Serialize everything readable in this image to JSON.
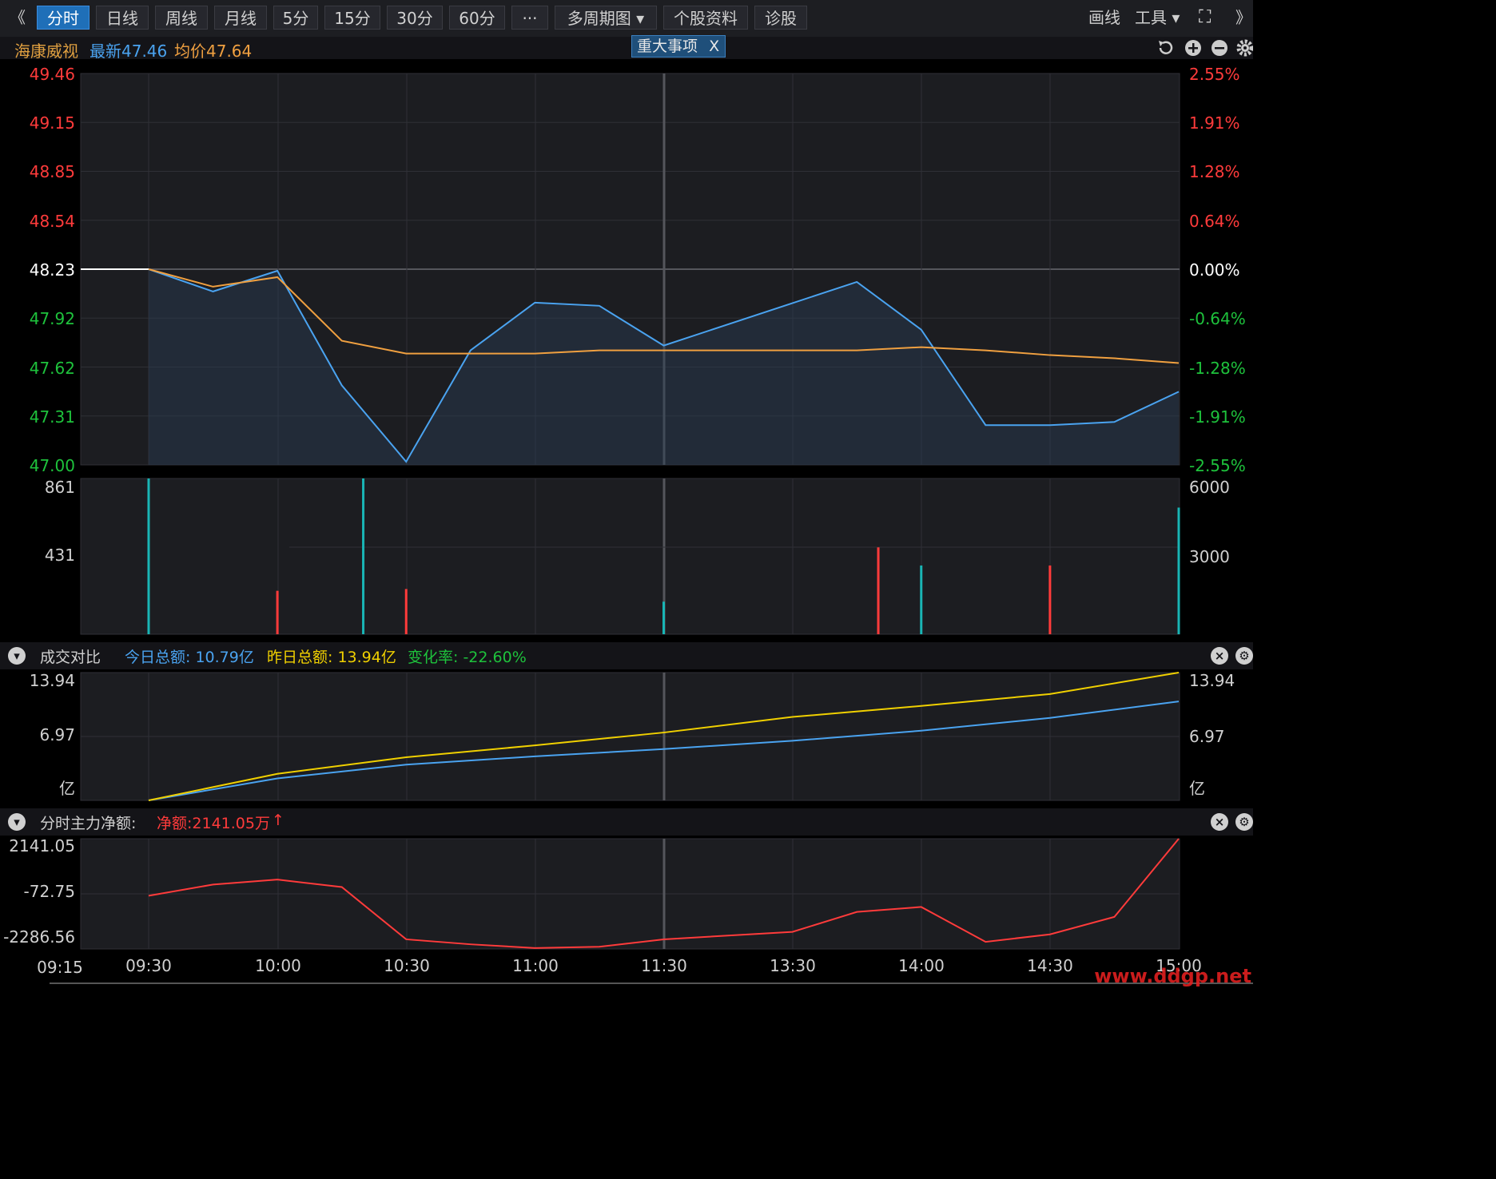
{
  "toolbar": {
    "back_glyph": "《",
    "tabs": [
      {
        "label": "分时",
        "active": true
      },
      {
        "label": "日线"
      },
      {
        "label": "周线"
      },
      {
        "label": "月线"
      },
      {
        "label": "5分"
      },
      {
        "label": "15分"
      },
      {
        "label": "30分"
      },
      {
        "label": "60分"
      },
      {
        "label": "···"
      },
      {
        "label": "多周期图 ▾"
      },
      {
        "label": "个股资料"
      },
      {
        "label": "诊股"
      }
    ],
    "draw_label": "画线",
    "tools_label": "工具 ▾",
    "fullscreen_glyph": "⛶",
    "next_glyph": "》"
  },
  "info": {
    "stock_name": "海康威视",
    "latest": "最新47.46",
    "avg": "均价47.64",
    "event_label": "重大事项",
    "event_close": "X"
  },
  "price_axis": {
    "left": [
      "49.46",
      "49.15",
      "48.85",
      "48.54",
      "48.23",
      "47.92",
      "47.62",
      "47.31",
      "47.00"
    ],
    "right": [
      "2.55%",
      "1.91%",
      "1.28%",
      "0.64%",
      "0.00%",
      "-0.64%",
      "-1.28%",
      "-1.91%",
      "-2.55%"
    ]
  },
  "volume_axis": {
    "left": [
      "861",
      "431"
    ],
    "right": [
      "6000",
      "3000"
    ]
  },
  "turnover": {
    "title": "成交对比",
    "today": "今日总额: 10.79亿",
    "yesterday": "昨日总额: 13.94亿",
    "change": "变化率: -22.60%",
    "left": [
      "13.94",
      "6.97",
      "亿"
    ],
    "right": [
      "13.94",
      "6.97",
      "亿"
    ]
  },
  "netflow": {
    "title": "分时主力净额:",
    "value": "净额:2141.05万",
    "arrow": "↑",
    "left": [
      "2141.05",
      "-72.75",
      "-2286.56"
    ]
  },
  "time_axis": [
    "09:15",
    "09:30",
    "10:00",
    "10:30",
    "11:00",
    "11:30",
    "13:30",
    "14:00",
    "14:30",
    "15:00"
  ],
  "watermark": "www.ddgp.net",
  "colors": {
    "up": "#ff3b3b",
    "down": "#1ec23c",
    "price_line": "#4aa3f0",
    "avg_line": "#f0a040",
    "volume_down": "#19b5b5",
    "yesterday_line": "#f0d000"
  },
  "chart_data": [
    {
      "type": "line",
      "name": "intraday-price",
      "ylim": [
        47.0,
        49.46
      ],
      "prev_close": 48.23,
      "x": [
        "09:30",
        "09:45",
        "10:00",
        "10:15",
        "10:30",
        "10:45",
        "11:00",
        "11:15",
        "11:30",
        "13:45",
        "14:00",
        "14:15",
        "14:30",
        "14:45",
        "15:00"
      ],
      "series": [
        {
          "name": "最新",
          "values": [
            48.23,
            48.09,
            48.22,
            47.5,
            47.02,
            47.72,
            48.02,
            48.0,
            47.75,
            48.15,
            47.85,
            47.25,
            47.25,
            47.27,
            47.46
          ]
        },
        {
          "name": "均价",
          "values": [
            48.23,
            48.12,
            48.18,
            47.78,
            47.7,
            47.7,
            47.7,
            47.72,
            47.72,
            47.72,
            47.74,
            47.72,
            47.69,
            47.67,
            47.64
          ]
        }
      ]
    },
    {
      "type": "bar",
      "name": "volume",
      "ylim": [
        0,
        861
      ],
      "x": [
        "09:30",
        "10:00",
        "10:20",
        "10:30",
        "11:30",
        "13:50",
        "14:00",
        "14:30",
        "15:00"
      ],
      "values": [
        861,
        240,
        861,
        250,
        180,
        480,
        380,
        380,
        700
      ]
    },
    {
      "type": "line",
      "name": "turnover-compare",
      "ylim": [
        0,
        13.94
      ],
      "x": [
        "09:30",
        "10:00",
        "10:30",
        "11:00",
        "11:30",
        "13:30",
        "14:00",
        "14:30",
        "15:00"
      ],
      "series": [
        {
          "name": "今日总额",
          "values": [
            0,
            2.4,
            3.9,
            4.8,
            5.6,
            6.5,
            7.6,
            9.0,
            10.79
          ]
        },
        {
          "name": "昨日总额",
          "values": [
            0,
            2.9,
            4.7,
            6.0,
            7.4,
            9.1,
            10.3,
            11.6,
            13.94
          ]
        }
      ]
    },
    {
      "type": "line",
      "name": "main-net-flow",
      "ylim": [
        -2286.56,
        2141.05
      ],
      "x": [
        "09:30",
        "09:45",
        "10:00",
        "10:15",
        "10:30",
        "10:45",
        "11:00",
        "11:15",
        "11:30",
        "13:30",
        "13:45",
        "14:00",
        "14:15",
        "14:30",
        "14:45",
        "15:00"
      ],
      "series": [
        {
          "name": "净额",
          "values": [
            -150,
            300,
            500,
            200,
            -1900,
            -2100,
            -2250,
            -2200,
            -1900,
            -1600,
            -800,
            -600,
            -2000,
            -1700,
            -1000,
            2141.05
          ]
        }
      ]
    }
  ]
}
